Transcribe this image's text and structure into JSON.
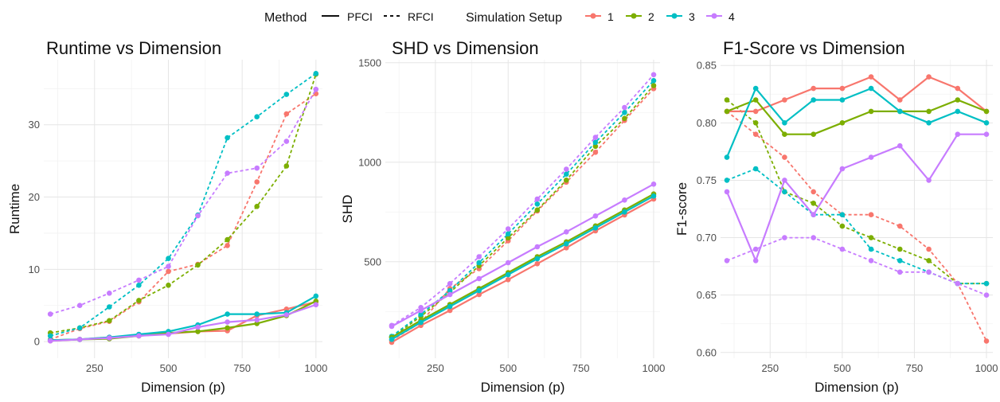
{
  "legend": {
    "method_title": "Method",
    "method_entries": [
      {
        "label": "PFCI",
        "dash": "solid"
      },
      {
        "label": "RFCI",
        "dash": "dashed"
      }
    ],
    "setup_title": "Simulation Setup",
    "setup_entries": [
      {
        "label": "1",
        "color": "#F8766D"
      },
      {
        "label": "2",
        "color": "#7CAE00"
      },
      {
        "label": "3",
        "color": "#00BFC4"
      },
      {
        "label": "4",
        "color": "#C77CFF"
      }
    ]
  },
  "chart_data": [
    {
      "type": "line",
      "title": "Runtime vs Dimension",
      "xlabel": "Dimension (p)",
      "ylabel": "Runtime",
      "xlim": [
        100,
        1000
      ],
      "ylim": [
        -2.3,
        39
      ],
      "xticks": [
        250,
        500,
        750,
        1000
      ],
      "yticks": [
        0,
        10,
        20,
        30
      ],
      "x": [
        100,
        200,
        300,
        400,
        500,
        600,
        700,
        800,
        900,
        1000
      ],
      "series": [
        {
          "setup": "1",
          "method": "PFCI",
          "color": "#F8766D",
          "dash": "solid",
          "values": [
            0.1,
            0.3,
            0.6,
            0.8,
            1.1,
            1.4,
            1.5,
            3.6,
            4.5,
            5.5
          ]
        },
        {
          "setup": "2",
          "method": "PFCI",
          "color": "#7CAE00",
          "dash": "solid",
          "values": [
            0.2,
            0.3,
            0.4,
            0.8,
            1.2,
            1.4,
            1.9,
            2.5,
            3.6,
            5.6
          ]
        },
        {
          "setup": "3",
          "method": "PFCI",
          "color": "#00BFC4",
          "dash": "solid",
          "values": [
            0.2,
            0.3,
            0.6,
            1.0,
            1.4,
            2.3,
            3.8,
            3.8,
            4.0,
            6.3
          ]
        },
        {
          "setup": "4",
          "method": "PFCI",
          "color": "#C77CFF",
          "dash": "solid",
          "values": [
            0.1,
            0.3,
            0.5,
            0.8,
            1.0,
            2.0,
            2.7,
            3.0,
            3.7,
            5.1
          ]
        },
        {
          "setup": "1",
          "method": "RFCI",
          "color": "#F8766D",
          "dash": "dashed",
          "values": [
            0.3,
            1.8,
            2.8,
            5.5,
            9.7,
            10.7,
            13.3,
            22.1,
            31.5,
            34.3
          ]
        },
        {
          "setup": "2",
          "method": "RFCI",
          "color": "#7CAE00",
          "dash": "dashed",
          "values": [
            1.2,
            1.9,
            2.9,
            5.7,
            7.8,
            10.6,
            14.1,
            18.7,
            24.3,
            37.0
          ]
        },
        {
          "setup": "3",
          "method": "RFCI",
          "color": "#00BFC4",
          "dash": "dashed",
          "values": [
            0.8,
            1.9,
            4.8,
            7.8,
            11.5,
            17.5,
            28.2,
            31.1,
            34.2,
            37.1
          ]
        },
        {
          "setup": "4",
          "method": "RFCI",
          "color": "#C77CFF",
          "dash": "dashed",
          "values": [
            3.8,
            5.0,
            6.7,
            8.5,
            10.4,
            17.4,
            23.3,
            24.0,
            27.7,
            34.9
          ]
        }
      ]
    },
    {
      "type": "line",
      "title": "SHD vs Dimension",
      "xlabel": "Dimension (p)",
      "ylabel": "SHD",
      "xlim": [
        100,
        1000
      ],
      "ylim": [
        15,
        1515
      ],
      "xticks": [
        250,
        500,
        750,
        1000
      ],
      "yticks": [
        500,
        1000,
        1500
      ],
      "x": [
        100,
        200,
        300,
        400,
        500,
        600,
        700,
        800,
        900,
        1000
      ],
      "series": [
        {
          "setup": "1",
          "method": "PFCI",
          "color": "#F8766D",
          "dash": "solid",
          "values": [
            95,
            180,
            255,
            335,
            410,
            490,
            570,
            655,
            735,
            815
          ]
        },
        {
          "setup": "2",
          "method": "PFCI",
          "color": "#7CAE00",
          "dash": "solid",
          "values": [
            120,
            205,
            285,
            365,
            445,
            525,
            600,
            680,
            760,
            840
          ]
        },
        {
          "setup": "3",
          "method": "PFCI",
          "color": "#00BFC4",
          "dash": "solid",
          "values": [
            110,
            195,
            275,
            355,
            435,
            515,
            590,
            670,
            750,
            830
          ]
        },
        {
          "setup": "4",
          "method": "PFCI",
          "color": "#C77CFF",
          "dash": "solid",
          "values": [
            175,
            255,
            335,
            415,
            495,
            575,
            650,
            730,
            810,
            890
          ]
        },
        {
          "setup": "1",
          "method": "RFCI",
          "color": "#F8766D",
          "dash": "dashed",
          "values": [
            105,
            195,
            365,
            465,
            605,
            755,
            900,
            1050,
            1210,
            1370
          ]
        },
        {
          "setup": "2",
          "method": "RFCI",
          "color": "#7CAE00",
          "dash": "dashed",
          "values": [
            120,
            225,
            345,
            480,
            620,
            760,
            910,
            1080,
            1220,
            1385
          ]
        },
        {
          "setup": "3",
          "method": "RFCI",
          "color": "#00BFC4",
          "dash": "dashed",
          "values": [
            125,
            235,
            355,
            495,
            640,
            790,
            940,
            1100,
            1250,
            1410
          ]
        },
        {
          "setup": "4",
          "method": "RFCI",
          "color": "#C77CFF",
          "dash": "dashed",
          "values": [
            180,
            270,
            390,
            525,
            665,
            815,
            965,
            1125,
            1275,
            1440
          ]
        }
      ]
    },
    {
      "type": "line",
      "title": "F1-Score vs Dimension",
      "xlabel": "Dimension (p)",
      "ylabel": "F1-score",
      "xlim": [
        100,
        1000
      ],
      "ylim": [
        0.595,
        0.855
      ],
      "xticks": [
        250,
        500,
        750,
        1000
      ],
      "yticks": [
        0.6,
        0.65,
        0.7,
        0.75,
        0.8,
        0.85
      ],
      "x": [
        100,
        200,
        300,
        400,
        500,
        600,
        700,
        800,
        900,
        1000
      ],
      "series": [
        {
          "setup": "1",
          "method": "PFCI",
          "color": "#F8766D",
          "dash": "solid",
          "values": [
            0.81,
            0.81,
            0.82,
            0.83,
            0.83,
            0.84,
            0.82,
            0.84,
            0.83,
            0.81
          ]
        },
        {
          "setup": "2",
          "method": "PFCI",
          "color": "#7CAE00",
          "dash": "solid",
          "values": [
            0.81,
            0.82,
            0.79,
            0.79,
            0.8,
            0.81,
            0.81,
            0.81,
            0.82,
            0.81
          ]
        },
        {
          "setup": "3",
          "method": "PFCI",
          "color": "#00BFC4",
          "dash": "solid",
          "values": [
            0.77,
            0.83,
            0.8,
            0.82,
            0.82,
            0.83,
            0.81,
            0.8,
            0.81,
            0.8
          ]
        },
        {
          "setup": "4",
          "method": "PFCI",
          "color": "#C77CFF",
          "dash": "solid",
          "values": [
            0.74,
            0.68,
            0.75,
            0.72,
            0.76,
            0.77,
            0.78,
            0.75,
            0.79,
            0.79
          ]
        },
        {
          "setup": "1",
          "method": "RFCI",
          "color": "#F8766D",
          "dash": "dashed",
          "values": [
            0.81,
            0.79,
            0.77,
            0.74,
            0.72,
            0.72,
            0.71,
            0.69,
            0.66,
            0.61
          ]
        },
        {
          "setup": "2",
          "method": "RFCI",
          "color": "#7CAE00",
          "dash": "dashed",
          "values": [
            0.82,
            0.8,
            0.74,
            0.73,
            0.71,
            0.7,
            0.69,
            0.68,
            0.66,
            0.66
          ]
        },
        {
          "setup": "3",
          "method": "RFCI",
          "color": "#00BFC4",
          "dash": "dashed",
          "values": [
            0.75,
            0.76,
            0.74,
            0.72,
            0.72,
            0.69,
            0.68,
            0.67,
            0.66,
            0.66
          ]
        },
        {
          "setup": "4",
          "method": "RFCI",
          "color": "#C77CFF",
          "dash": "dashed",
          "values": [
            0.68,
            0.69,
            0.7,
            0.7,
            0.69,
            0.68,
            0.67,
            0.67,
            0.66,
            0.65
          ]
        }
      ]
    }
  ]
}
